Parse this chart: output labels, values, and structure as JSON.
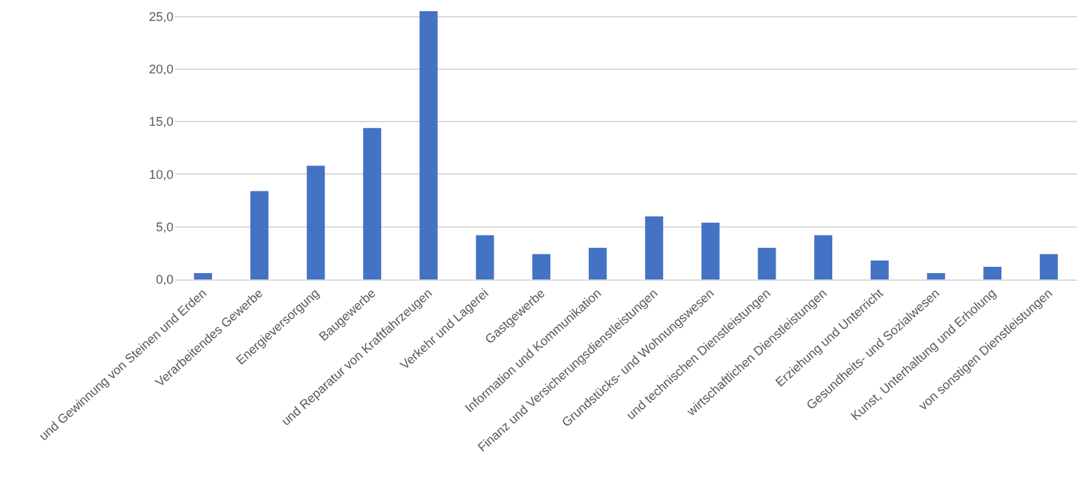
{
  "chart_data": {
    "type": "bar",
    "categories": [
      "und Gewinnung von Steinen und Erden",
      "Verarbeitendes Gewerbe",
      "Energieversorgung",
      "Baugewerbe",
      "und Reparatur von Kraftfahrzeugen",
      "Verkehr und Lagerei",
      "Gastgewerbe",
      "Information und Kommunikation",
      "Finanz und Versicherungsdienstleistungen",
      "Grundstücks- und Wohnungswesen",
      "und technischen Dienstleistungen",
      "wirtschaftlichen Dienstleistungen",
      "Erziehung und Unterricht",
      "Gesundheits- und Sozialwesen",
      "Kunst, Unterhaltung und Erholung",
      "von sonstigen Dienstleistungen"
    ],
    "values": [
      0.6,
      8.4,
      10.8,
      14.4,
      25.5,
      4.2,
      2.4,
      3.0,
      6.0,
      5.4,
      3.0,
      4.2,
      1.8,
      0.6,
      1.2,
      2.4
    ],
    "color": "#4472c4",
    "ylim": [
      0,
      25.5
    ],
    "yticks": [
      {
        "value": 0,
        "label": "0,0"
      },
      {
        "value": 5,
        "label": "5,0"
      },
      {
        "value": 10,
        "label": "10,0"
      },
      {
        "value": 15,
        "label": "15,0"
      },
      {
        "value": 20,
        "label": "20,0"
      },
      {
        "value": 25,
        "label": "25,0"
      }
    ],
    "grid": "y"
  }
}
